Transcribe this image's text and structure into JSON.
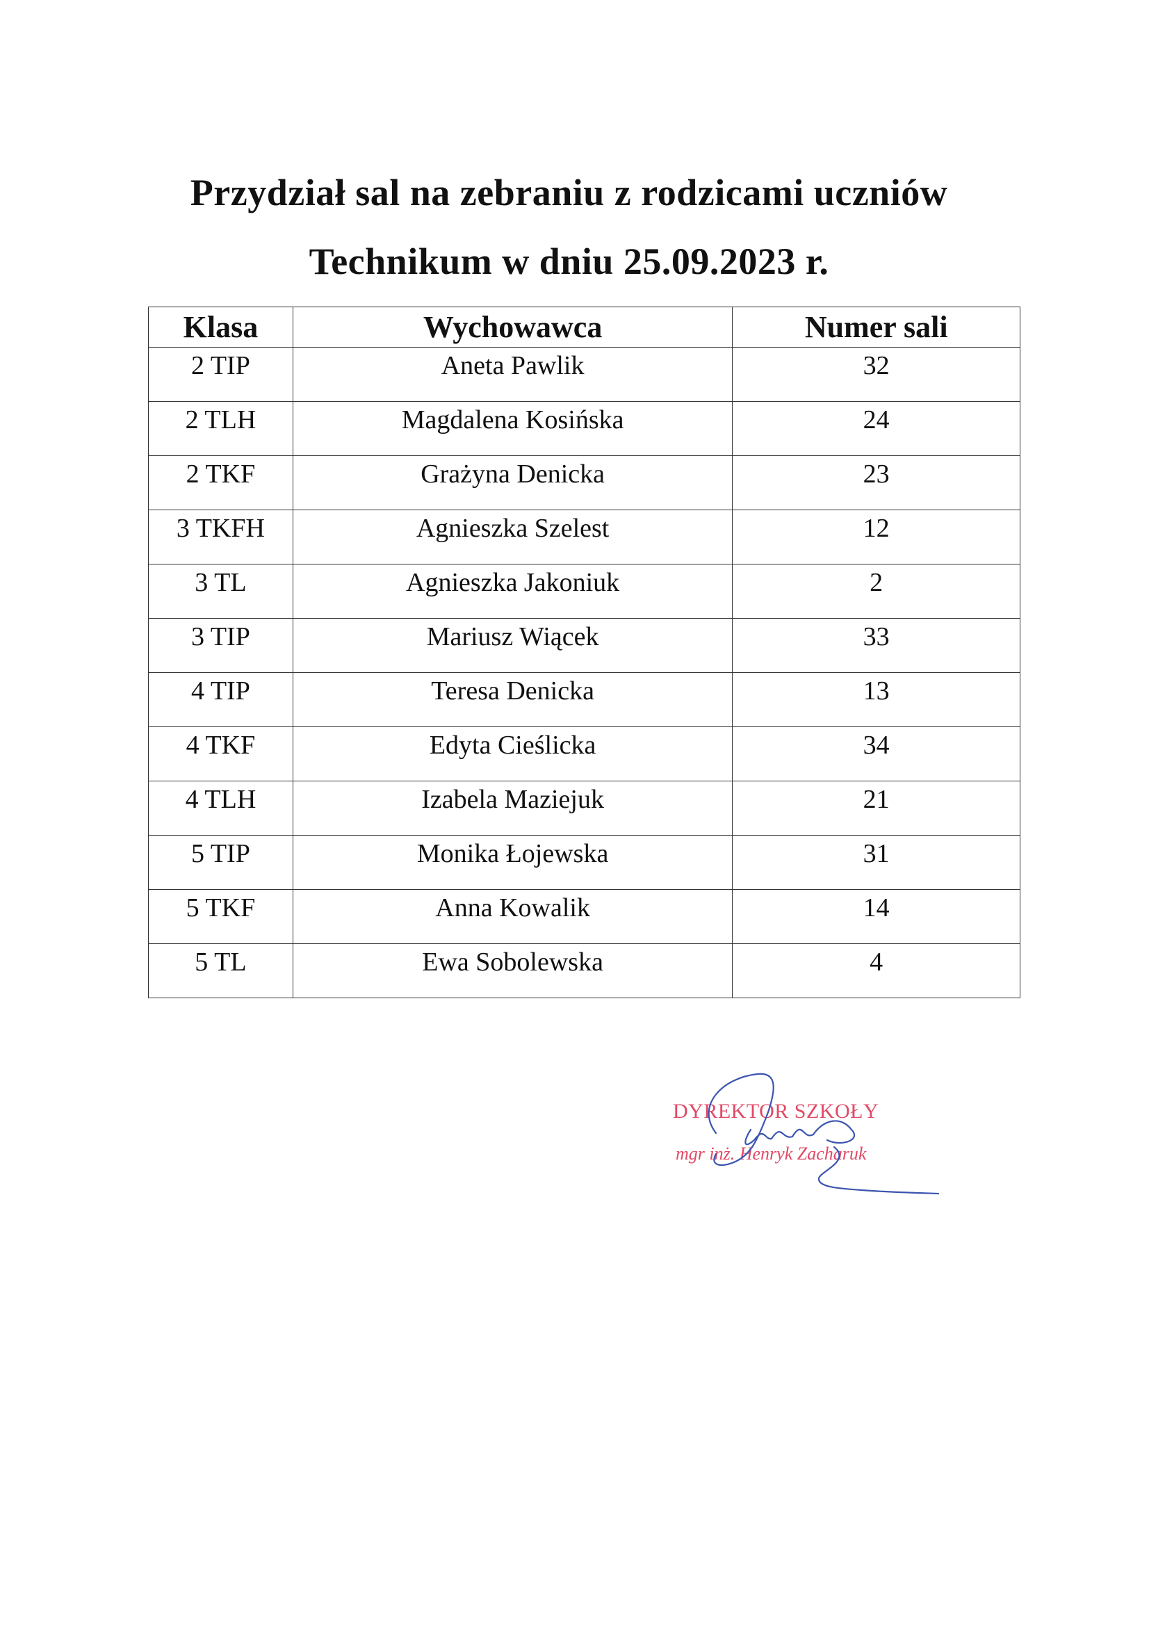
{
  "title": {
    "line1": "Przydział sal na zebraniu z rodzicami uczniów",
    "line2": "Technikum w dniu 25.09.2023 r."
  },
  "table": {
    "headers": [
      "Klasa",
      "Wychowawca",
      "Numer sali"
    ],
    "rows": [
      [
        "2 TIP",
        "Aneta Pawlik",
        "32"
      ],
      [
        "2 TLH",
        "Magdalena Kosińska",
        "24"
      ],
      [
        "2 TKF",
        "Grażyna Denicka",
        "23"
      ],
      [
        "3 TKFH",
        "Agnieszka Szelest",
        "12"
      ],
      [
        "3 TL",
        "Agnieszka Jakoniuk",
        "2"
      ],
      [
        "3 TIP",
        "Mariusz Wiącek",
        "33"
      ],
      [
        "4 TIP",
        "Teresa Denicka",
        "13"
      ],
      [
        "4 TKF",
        "Edyta Cieślicka",
        "34"
      ],
      [
        "4 TLH",
        "Izabela Maziejuk",
        "21"
      ],
      [
        "5 TIP",
        "Monika Łojewska",
        "31"
      ],
      [
        "5 TKF",
        "Anna Kowalik",
        "14"
      ],
      [
        "5 TL",
        "Ewa Sobolewska",
        "4"
      ]
    ]
  },
  "stamp": {
    "line1": "DYREKTOR SZKOŁY",
    "line2": "mgr inż. Henryk Zacharuk",
    "color": "#e04a66"
  },
  "signature_color": "#3b55b0"
}
